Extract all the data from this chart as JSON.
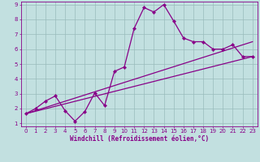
{
  "xlabel": "Windchill (Refroidissement éolien,°C)",
  "xlim": [
    -0.5,
    23.5
  ],
  "ylim": [
    0.8,
    9.2
  ],
  "xticks": [
    0,
    1,
    2,
    3,
    4,
    5,
    6,
    7,
    8,
    9,
    10,
    11,
    12,
    13,
    14,
    15,
    16,
    17,
    18,
    19,
    20,
    21,
    22,
    23
  ],
  "yticks": [
    1,
    2,
    3,
    4,
    5,
    6,
    7,
    8,
    9
  ],
  "bg_color": "#c2e0e0",
  "line_color": "#880088",
  "grid_color": "#99bbbb",
  "line1_x": [
    0,
    1,
    2,
    3,
    4,
    5,
    6,
    7,
    8,
    9,
    10,
    11,
    12,
    13,
    14,
    15,
    16,
    17,
    18,
    19,
    20,
    21,
    22,
    23
  ],
  "line1_y": [
    1.65,
    2.0,
    2.5,
    2.85,
    1.85,
    1.15,
    1.8,
    3.05,
    2.2,
    4.5,
    4.8,
    7.4,
    8.8,
    8.5,
    9.0,
    7.9,
    6.75,
    6.5,
    6.5,
    6.0,
    6.0,
    6.3,
    5.5,
    5.5
  ],
  "line2_x": [
    0,
    23
  ],
  "line2_y": [
    1.65,
    5.5
  ],
  "line3_x": [
    0,
    23
  ],
  "line3_y": [
    1.65,
    6.5
  ],
  "marker": "D",
  "marker_size": 2.2,
  "linewidth": 0.9,
  "tick_fontsize": 5.0,
  "xlabel_fontsize": 5.5
}
